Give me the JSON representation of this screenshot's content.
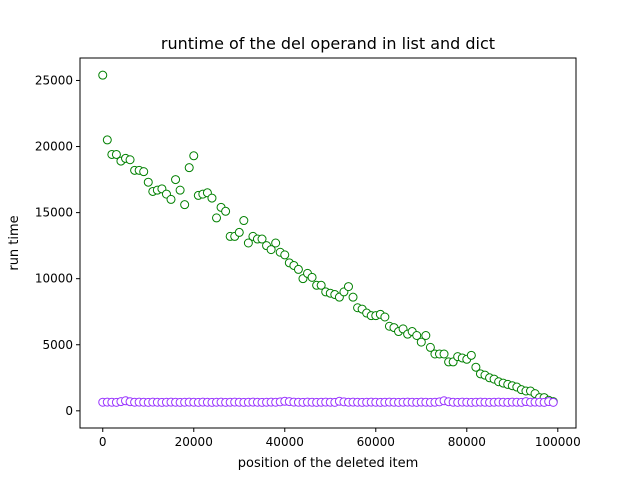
{
  "colors": {
    "list_series": "#008000",
    "dict_series": "#9933ff",
    "axes": "#000000",
    "background": "#ffffff"
  },
  "chart_data": {
    "type": "scatter",
    "title": "runtime of the del operand in list and dict",
    "xlabel": "position of the deleted item",
    "ylabel": "run time",
    "xlim": [
      -5000,
      104000
    ],
    "ylim": [
      -1300,
      26700
    ],
    "xticks": [
      0,
      20000,
      40000,
      60000,
      80000,
      100000
    ],
    "yticks": [
      0,
      5000,
      10000,
      15000,
      20000,
      25000
    ],
    "grid": false,
    "legend": "none",
    "marker": "hollow-circle",
    "series": [
      {
        "color": "#008000",
        "x": [
          0,
          1000,
          2000,
          3000,
          4000,
          5000,
          6000,
          7000,
          8000,
          9000,
          10000,
          11000,
          12000,
          13000,
          14000,
          15000,
          16000,
          17000,
          18000,
          19000,
          20000,
          21000,
          22000,
          23000,
          24000,
          25000,
          26000,
          27000,
          28000,
          29000,
          30000,
          31000,
          32000,
          33000,
          34000,
          35000,
          36000,
          37000,
          38000,
          39000,
          40000,
          41000,
          42000,
          43000,
          44000,
          45000,
          46000,
          47000,
          48000,
          49000,
          50000,
          51000,
          52000,
          53000,
          54000,
          55000,
          56000,
          57000,
          58000,
          59000,
          60000,
          61000,
          62000,
          63000,
          64000,
          65000,
          66000,
          67000,
          68000,
          69000,
          70000,
          71000,
          72000,
          73000,
          74000,
          75000,
          76000,
          77000,
          78000,
          79000,
          80000,
          81000,
          82000,
          83000,
          84000,
          85000,
          86000,
          87000,
          88000,
          89000,
          90000,
          91000,
          92000,
          93000,
          94000,
          95000,
          96000,
          97000,
          98000,
          99000
        ],
        "y": [
          25400,
          20500,
          19400,
          19400,
          18900,
          19100,
          19000,
          18200,
          18200,
          18100,
          17300,
          16600,
          16700,
          16800,
          16400,
          16000,
          17500,
          16700,
          15600,
          18400,
          19300,
          16300,
          16400,
          16500,
          16100,
          14600,
          15400,
          15100,
          13200,
          13200,
          13500,
          14400,
          12700,
          13200,
          13000,
          13000,
          12500,
          12200,
          12700,
          12000,
          11800,
          11200,
          11000,
          10700,
          10000,
          10400,
          10100,
          9500,
          9500,
          9000,
          8900,
          8800,
          8600,
          9000,
          9400,
          8600,
          7800,
          7700,
          7400,
          7200,
          7200,
          7300,
          7100,
          6400,
          6300,
          6000,
          6200,
          5800,
          6000,
          5700,
          5200,
          5700,
          4800,
          4300,
          4300,
          4300,
          3700,
          3700,
          4100,
          4000,
          3900,
          4200,
          3300,
          2800,
          2700,
          2500,
          2400,
          2200,
          2100,
          2000,
          1900,
          1800,
          1600,
          1500,
          1500,
          1300,
          1000,
          1000,
          800,
          700
        ]
      },
      {
        "color": "#9933ff",
        "x": [
          0,
          1000,
          2000,
          3000,
          4000,
          5000,
          6000,
          7000,
          8000,
          9000,
          10000,
          11000,
          12000,
          13000,
          14000,
          15000,
          16000,
          17000,
          18000,
          19000,
          20000,
          21000,
          22000,
          23000,
          24000,
          25000,
          26000,
          27000,
          28000,
          29000,
          30000,
          31000,
          32000,
          33000,
          34000,
          35000,
          36000,
          37000,
          38000,
          39000,
          40000,
          41000,
          42000,
          43000,
          44000,
          45000,
          46000,
          47000,
          48000,
          49000,
          50000,
          51000,
          52000,
          53000,
          54000,
          55000,
          56000,
          57000,
          58000,
          59000,
          60000,
          61000,
          62000,
          63000,
          64000,
          65000,
          66000,
          67000,
          68000,
          69000,
          70000,
          71000,
          72000,
          73000,
          74000,
          75000,
          76000,
          77000,
          78000,
          79000,
          80000,
          81000,
          82000,
          83000,
          84000,
          85000,
          86000,
          87000,
          88000,
          89000,
          90000,
          91000,
          92000,
          93000,
          94000,
          95000,
          96000,
          97000,
          98000,
          99000
        ],
        "y": [
          650,
          660,
          650,
          640,
          700,
          760,
          690,
          650,
          660,
          650,
          640,
          660,
          650,
          640,
          650,
          660,
          650,
          640,
          650,
          660,
          650,
          640,
          660,
          650,
          640,
          650,
          660,
          640,
          650,
          660,
          650,
          640,
          650,
          660,
          650,
          640,
          650,
          660,
          650,
          680,
          720,
          700,
          660,
          650,
          640,
          660,
          650,
          640,
          650,
          660,
          650,
          640,
          720,
          680,
          650,
          660,
          650,
          640,
          650,
          660,
          650,
          640,
          650,
          660,
          650,
          640,
          650,
          660,
          650,
          640,
          660,
          650,
          640,
          650,
          680,
          760,
          690,
          650,
          640,
          660,
          650,
          640,
          650,
          660,
          650,
          640,
          650,
          660,
          650,
          640,
          660,
          650,
          640,
          700,
          650,
          660,
          650,
          640,
          700,
          640
        ]
      }
    ]
  }
}
